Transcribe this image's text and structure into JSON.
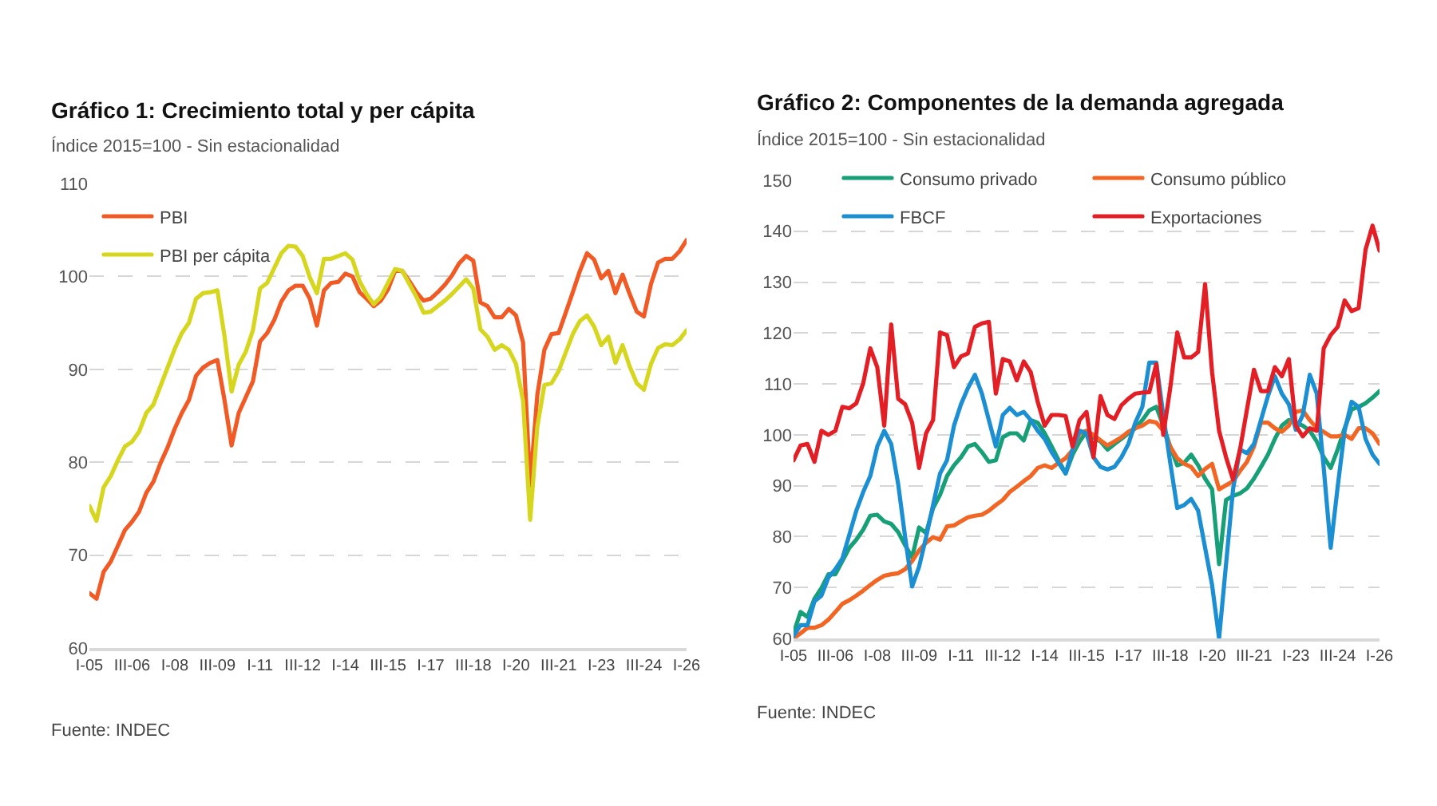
{
  "chart_data": [
    {
      "type": "line",
      "title": "Gráfico 1: Crecimiento total y per cápita",
      "subtitle": "Índice 2015=100 - Sin estacionalidad",
      "annotations": [
        "Fuente: INDEC"
      ],
      "categories": [
        "I-05",
        null,
        null,
        null,
        null,
        null,
        "III-06",
        null,
        null,
        null,
        null,
        null,
        "I-08",
        null,
        null,
        null,
        null,
        null,
        "III-09",
        null,
        null,
        null,
        null,
        null,
        "I-11",
        null,
        null,
        null,
        null,
        null,
        "III-12",
        null,
        null,
        null,
        null,
        null,
        "I-14",
        null,
        null,
        null,
        null,
        null,
        "III-15",
        null,
        null,
        null,
        null,
        null,
        "I-17",
        null,
        null,
        null,
        null,
        null,
        "III-18",
        null,
        null,
        null,
        null,
        null,
        "I-20",
        null,
        null,
        null,
        null,
        null,
        "III-21",
        null,
        null,
        null,
        null,
        null,
        "I-23",
        null,
        null,
        null,
        null,
        null,
        "III-24",
        null,
        null,
        null,
        null,
        null,
        "I-26"
      ],
      "series": [
        {
          "name": "PBI",
          "color": "#f15a24",
          "values": [
            65.9,
            65.3,
            68.2,
            69.3,
            71,
            72.7,
            73.6,
            74.7,
            76.7,
            77.9,
            79.9,
            81.6,
            83.6,
            85.3,
            86.7,
            89.3,
            90.2,
            90.7,
            91,
            86.7,
            81.8,
            85.3,
            87,
            88.7,
            93,
            93.9,
            95.3,
            97.3,
            98.5,
            99,
            99,
            97.6,
            94.7,
            98.5,
            99.3,
            99.4,
            100.3,
            100,
            98.3,
            97.6,
            96.8,
            97.4,
            98.6,
            100.6,
            100.6,
            99.5,
            98.3,
            97.4,
            97.6,
            98.3,
            99.1,
            100.1,
            101.4,
            102.2,
            101.7,
            97.2,
            96.8,
            95.6,
            95.6,
            96.5,
            95.8,
            92.9,
            77.5,
            87.2,
            92.1,
            93.8,
            93.9,
            96.1,
            98.3,
            100.6,
            102.5,
            101.8,
            99.8,
            100.6,
            98.2,
            100.2,
            98.1,
            96.2,
            95.7,
            99.2,
            101.5,
            101.9,
            101.9,
            102.7,
            103.9
          ]
        },
        {
          "name": "PBI per cápita",
          "color": "#d6d61e",
          "values": [
            75.3,
            73.7,
            77.3,
            78.5,
            80.2,
            81.7,
            82.2,
            83.3,
            85.3,
            86.2,
            88.2,
            90.2,
            92.2,
            93.9,
            95,
            97.6,
            98.2,
            98.3,
            98.5,
            93.6,
            87.6,
            90.5,
            91.9,
            94.2,
            98.7,
            99.3,
            100.9,
            102.5,
            103.3,
            103.2,
            102.2,
            99.9,
            98.2,
            101.9,
            101.9,
            102.2,
            102.5,
            101.8,
            99.5,
            98.1,
            97,
            97.8,
            99.3,
            100.8,
            100.6,
            99.2,
            97.8,
            96.1,
            96.2,
            96.8,
            97.4,
            98.1,
            98.9,
            99.7,
            98.7,
            94.3,
            93.5,
            92.1,
            92.6,
            92.1,
            90.6,
            86.6,
            73.8,
            83.8,
            88.3,
            88.5,
            89.8,
            91.8,
            93.8,
            95.2,
            95.8,
            94.6,
            92.6,
            93.5,
            90.7,
            92.6,
            90.3,
            88.5,
            87.8,
            90.6,
            92.3,
            92.7,
            92.6,
            93.2,
            94.2
          ]
        }
      ],
      "ylim": [
        60,
        110
      ],
      "yticks": [
        60,
        70,
        80,
        90,
        100,
        110
      ],
      "grid": "y",
      "legend": "top left"
    },
    {
      "type": "line",
      "title": "Gráfico 2: Componentes de la demanda agregada",
      "subtitle": "Índice 2015=100 - Sin estacionalidad",
      "annotations": [
        "Fuente: INDEC"
      ],
      "categories": [
        "I-05",
        null,
        null,
        null,
        null,
        null,
        "III-06",
        null,
        null,
        null,
        null,
        null,
        "I-08",
        null,
        null,
        null,
        null,
        null,
        "III-09",
        null,
        null,
        null,
        null,
        null,
        "I-11",
        null,
        null,
        null,
        null,
        null,
        "III-12",
        null,
        null,
        null,
        null,
        null,
        "I-14",
        null,
        null,
        null,
        null,
        null,
        "III-15",
        null,
        null,
        null,
        null,
        null,
        "I-17",
        null,
        null,
        null,
        null,
        null,
        "III-18",
        null,
        null,
        null,
        null,
        null,
        "I-20",
        null,
        null,
        null,
        null,
        null,
        "III-21",
        null,
        null,
        null,
        null,
        null,
        "I-23",
        null,
        null,
        null,
        null,
        null,
        "III-24",
        null,
        null,
        null,
        null,
        null,
        "I-26"
      ],
      "series": [
        {
          "name": "Consumo privado",
          "color": "#17a077",
          "values": [
            61,
            65.2,
            64.2,
            67.8,
            69.9,
            72.6,
            72.6,
            75.2,
            77.8,
            79.4,
            81.4,
            84.1,
            84.3,
            83,
            82.5,
            80.9,
            78.3,
            75.9,
            81.8,
            80.7,
            85.6,
            88.2,
            91.9,
            94,
            95.6,
            97.7,
            98.2,
            96.6,
            94.7,
            95,
            99.5,
            100.3,
            100.3,
            98.9,
            102.9,
            102.4,
            100.3,
            97.7,
            95,
            92.4,
            96.1,
            98.7,
            100.6,
            99.5,
            98.7,
            97.1,
            98.2,
            99.2,
            100.3,
            101.3,
            102.9,
            104.8,
            105.5,
            101.8,
            97.7,
            94,
            94.5,
            96.1,
            94,
            91.4,
            89.3,
            74.6,
            87.2,
            88,
            88.5,
            89.5,
            91.4,
            93.7,
            96.1,
            99.2,
            101.8,
            102.9,
            102.4,
            101.8,
            100.8,
            98.7,
            95.6,
            93.5,
            97.1,
            101.3,
            105,
            105.5,
            106.2,
            107.3,
            108.6
          ]
        },
        {
          "name": "Consumo público",
          "color": "#f26522",
          "values": [
            60,
            61,
            62.1,
            62.1,
            62.6,
            63.7,
            65.2,
            66.8,
            67.5,
            68.4,
            69.4,
            70.5,
            71.5,
            72.3,
            72.6,
            72.8,
            73.6,
            75.2,
            77.3,
            78.8,
            79.9,
            79.4,
            82,
            82.2,
            83,
            83.8,
            84.1,
            84.3,
            85.1,
            86.2,
            87.2,
            88.8,
            89.8,
            90.9,
            91.9,
            93.5,
            94,
            93.5,
            94.5,
            95.4,
            97,
            100.3,
            100.8,
            100,
            98.9,
            97.9,
            98.7,
            99.5,
            100.6,
            101.3,
            101.8,
            102.7,
            102.4,
            100.8,
            97.7,
            95.4,
            94.3,
            93.7,
            91.9,
            93.3,
            94.3,
            89.3,
            90.1,
            90.9,
            92.9,
            94.7,
            97.7,
            102.4,
            102.4,
            101.3,
            100.6,
            101.8,
            104.5,
            104.8,
            102.9,
            101.3,
            100.6,
            99.7,
            99.7,
            100,
            99.2,
            101.3,
            101.3,
            100.3,
            98.2
          ]
        },
        {
          "name": "FBCF",
          "color": "#1b8fd2",
          "values": [
            60.5,
            62.6,
            62.6,
            67.3,
            68.4,
            72,
            73.6,
            75.7,
            80.4,
            85.1,
            88.8,
            91.9,
            97.7,
            100.8,
            98.2,
            90.3,
            79.9,
            70.2,
            74.1,
            79.9,
            86.2,
            92.4,
            95,
            101.8,
            106,
            109.2,
            111.8,
            108.1,
            102.9,
            97.7,
            103.9,
            105.3,
            103.9,
            104.5,
            102.9,
            100.8,
            99.2,
            96.6,
            94.5,
            92.4,
            97.1,
            100.8,
            100.3,
            95.6,
            93.7,
            93.2,
            93.7,
            95.6,
            98.2,
            102.4,
            105.5,
            114.2,
            114.2,
            103.9,
            94.5,
            85.6,
            86.2,
            87.4,
            85.1,
            77.8,
            70.5,
            60,
            74.6,
            89.3,
            97.1,
            96.4,
            98.2,
            102.9,
            107.6,
            111.5,
            108.1,
            106,
            101,
            103.9,
            111.8,
            108.1,
            93.5,
            77.8,
            89.8,
            100.8,
            106.5,
            105.5,
            99.2,
            96.1,
            94.3
          ]
        },
        {
          "name": "Exportaciones",
          "color": "#e31e24",
          "values": [
            95,
            97.9,
            98.2,
            94.7,
            100.8,
            100,
            100.8,
            105.5,
            105.2,
            106.2,
            110.2,
            117,
            113.3,
            101.8,
            121.7,
            107.1,
            106,
            102.4,
            93.5,
            100.3,
            102.9,
            120.1,
            119.6,
            113.3,
            115.4,
            116,
            121.2,
            121.9,
            122.2,
            108.1,
            114.9,
            114.4,
            110.7,
            114.4,
            112.3,
            106.5,
            101.8,
            103.9,
            103.9,
            103.7,
            97.7,
            102.9,
            104.5,
            95.6,
            107.6,
            103.9,
            103.1,
            105.8,
            107.1,
            108.1,
            108.3,
            108.4,
            113.9,
            100,
            109.2,
            120.1,
            115.2,
            115.2,
            116.3,
            129.6,
            112.3,
            100.8,
            95.6,
            91.2,
            97.1,
            105,
            112.8,
            108.6,
            108.6,
            113.3,
            111.5,
            114.9,
            101.8,
            99.7,
            101.3,
            100.8,
            117,
            119.6,
            121.2,
            126.4,
            124.3,
            124.9,
            136.4,
            141.1,
            136.2
          ]
        }
      ],
      "ylim": [
        60,
        150
      ],
      "yticks": [
        60,
        70,
        80,
        90,
        100,
        110,
        120,
        130,
        140,
        150
      ],
      "grid": "y",
      "legend": "top"
    }
  ]
}
